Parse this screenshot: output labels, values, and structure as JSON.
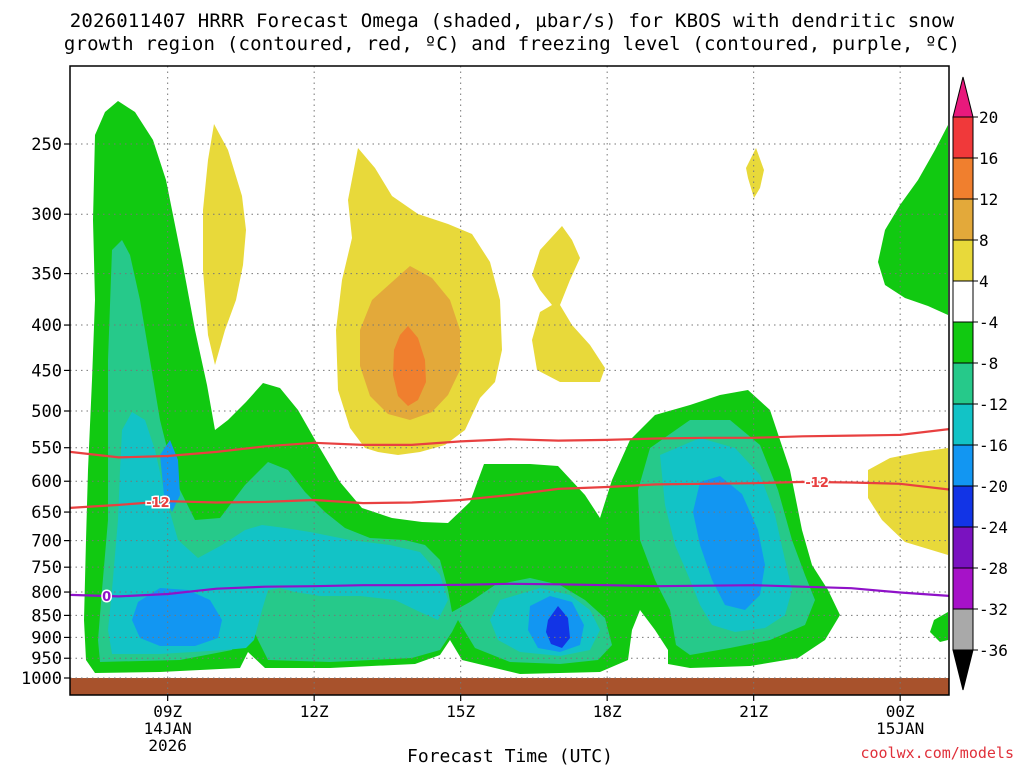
{
  "chart_data": {
    "type": "heatmap",
    "title_line1": "2026011407 HRRR Forecast Omega (shaded, µbar/s) for KBOS with dendritic snow",
    "title_line2": "growth region (contoured, red, ºC) and freezing level (contoured, purple, ºC)",
    "xlabel": "Forecast Time (UTC)",
    "ylabel": "",
    "x_range_hours": [
      7.0,
      25.0
    ],
    "x_ticks": [
      {
        "hour": 9,
        "label": "09Z",
        "sub1": "14JAN",
        "sub2": "2026"
      },
      {
        "hour": 12,
        "label": "12Z",
        "sub1": "",
        "sub2": ""
      },
      {
        "hour": 15,
        "label": "15Z",
        "sub1": "",
        "sub2": ""
      },
      {
        "hour": 18,
        "label": "18Z",
        "sub1": "",
        "sub2": ""
      },
      {
        "hour": 21,
        "label": "21Z",
        "sub1": "",
        "sub2": ""
      },
      {
        "hour": 24,
        "label": "00Z",
        "sub1": "15JAN",
        "sub2": ""
      }
    ],
    "pressure_levels": [
      250,
      300,
      350,
      400,
      450,
      500,
      550,
      600,
      650,
      700,
      750,
      800,
      850,
      900,
      950,
      1000
    ],
    "colorbar": {
      "labels": [
        "20",
        "16",
        "12",
        "8",
        "4",
        "-4",
        "-8",
        "-12",
        "-16",
        "-20",
        "-24",
        "-28",
        "-32",
        "-36"
      ],
      "bins": [
        {
          "color": "#e8197c"
        },
        {
          "color": "#f0393a"
        },
        {
          "color": "#f07f2e"
        },
        {
          "color": "#e3a93a"
        },
        {
          "color": "#e8d93a"
        },
        {
          "color": "#ffffff"
        },
        {
          "color": "#11c911"
        },
        {
          "color": "#26c98a"
        },
        {
          "color": "#12c3c6"
        },
        {
          "color": "#1296f2"
        },
        {
          "color": "#1234e6"
        },
        {
          "color": "#7a12c0"
        },
        {
          "color": "#a612c8"
        },
        {
          "color": "#a9a9a9"
        },
        {
          "color": "#000000"
        }
      ]
    },
    "contours": [
      {
        "name": "-12C isotherm (top of dendritic growth)",
        "color": "#e84040",
        "label": "-12",
        "points": [
          [
            7.0,
            556
          ],
          [
            8.0,
            564
          ],
          [
            9.0,
            562
          ],
          [
            10.0,
            556
          ],
          [
            11.0,
            548
          ],
          [
            12.0,
            543
          ],
          [
            13.0,
            546
          ],
          [
            14.0,
            546
          ],
          [
            15.0,
            541
          ],
          [
            16.0,
            538
          ],
          [
            17.0,
            540
          ],
          [
            18.0,
            539
          ],
          [
            19.0,
            537
          ],
          [
            20.0,
            536
          ],
          [
            21.0,
            536
          ],
          [
            22.0,
            534
          ],
          [
            23.0,
            533
          ],
          [
            24.0,
            532
          ],
          [
            25.0,
            524
          ]
        ]
      },
      {
        "name": "-12C isotherm (bottom of dendritic growth)",
        "color": "#e84040",
        "label": "-12",
        "points": [
          [
            7.0,
            643
          ],
          [
            8.0,
            638
          ],
          [
            9.0,
            632
          ],
          [
            10.0,
            634
          ],
          [
            11.0,
            633
          ],
          [
            12.0,
            630
          ],
          [
            13.0,
            635
          ],
          [
            14.0,
            634
          ],
          [
            15.0,
            630
          ],
          [
            16.0,
            622
          ],
          [
            17.0,
            612
          ],
          [
            18.0,
            609
          ],
          [
            19.0,
            605
          ],
          [
            20.0,
            604
          ],
          [
            21.0,
            603
          ],
          [
            22.0,
            601
          ],
          [
            23.0,
            602
          ],
          [
            24.0,
            604
          ],
          [
            25.0,
            613
          ]
        ]
      },
      {
        "name": "0C freezing level",
        "color": "#8f12c8",
        "label": "0",
        "points": [
          [
            7.0,
            806
          ],
          [
            8.0,
            809
          ],
          [
            9.0,
            804
          ],
          [
            10.0,
            793
          ],
          [
            11.0,
            789
          ],
          [
            12.0,
            788
          ],
          [
            13.0,
            786
          ],
          [
            14.0,
            786
          ],
          [
            15.0,
            785
          ],
          [
            16.0,
            783
          ],
          [
            17.0,
            784
          ],
          [
            18.0,
            786
          ],
          [
            19.0,
            788
          ],
          [
            20.0,
            787
          ],
          [
            21.0,
            786
          ],
          [
            22.0,
            789
          ],
          [
            23.0,
            792
          ],
          [
            24.0,
            801
          ],
          [
            25.0,
            808
          ]
        ]
      }
    ]
  },
  "footer": "coolwx.com/models"
}
